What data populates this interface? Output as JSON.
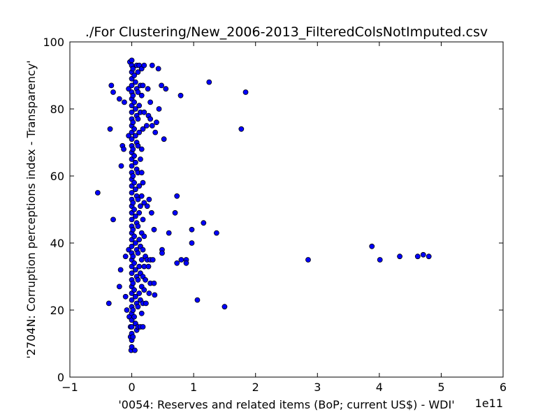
{
  "chart_data": {
    "type": "scatter",
    "title": "./For Clustering/New_2006-2013_FilteredColsNotImputed.csv",
    "xlabel": "'0054: Reserves and related items  (BoP; current US$) - WDI'",
    "ylabel": "'2704N: Corruption perceptions index - Transparency'",
    "x_multiplier_label": "1e11",
    "xlim": [
      -1,
      6
    ],
    "ylim": [
      0,
      100
    ],
    "x_ticks": [
      -1,
      0,
      1,
      2,
      3,
      4,
      5,
      6
    ],
    "x_tick_labels": [
      "−1",
      "0",
      "1",
      "2",
      "3",
      "4",
      "5",
      "6"
    ],
    "y_ticks": [
      0,
      20,
      40,
      60,
      80,
      100
    ],
    "y_tick_labels": [
      "0",
      "20",
      "40",
      "60",
      "80",
      "100"
    ],
    "grid": false,
    "marker_color": "#0000ff",
    "marker_edge_color": "#000000",
    "x_unit_note": "x values in units of 1e11",
    "points": [
      {
        "x": -0.55,
        "y": 55
      },
      {
        "x": -0.37,
        "y": 22
      },
      {
        "x": -0.35,
        "y": 74
      },
      {
        "x": -0.33,
        "y": 87
      },
      {
        "x": -0.3,
        "y": 85
      },
      {
        "x": -0.3,
        "y": 47
      },
      {
        "x": -0.2,
        "y": 27
      },
      {
        "x": -0.2,
        "y": 83
      },
      {
        "x": -0.18,
        "y": 32
      },
      {
        "x": -0.17,
        "y": 63
      },
      {
        "x": -0.15,
        "y": 69
      },
      {
        "x": -0.13,
        "y": 68
      },
      {
        "x": -0.12,
        "y": 82
      },
      {
        "x": -0.1,
        "y": 36
      },
      {
        "x": -0.1,
        "y": 24
      },
      {
        "x": -0.08,
        "y": 20
      },
      {
        "x": -0.05,
        "y": 86
      },
      {
        "x": -0.05,
        "y": 72
      },
      {
        "x": -0.05,
        "y": 38
      },
      {
        "x": -0.04,
        "y": 18
      },
      {
        "x": -0.03,
        "y": 94
      },
      {
        "x": -0.02,
        "y": 15
      },
      {
        "x": -0.02,
        "y": 12
      },
      {
        "x": -0.01,
        "y": 8
      },
      {
        "x": 0.0,
        "y": 94.5
      },
      {
        "x": 0.0,
        "y": 93
      },
      {
        "x": 0.0,
        "y": 91
      },
      {
        "x": 0.0,
        "y": 89
      },
      {
        "x": 0.0,
        "y": 87
      },
      {
        "x": 0.0,
        "y": 85
      },
      {
        "x": 0.0,
        "y": 83
      },
      {
        "x": 0.0,
        "y": 81
      },
      {
        "x": 0.0,
        "y": 79
      },
      {
        "x": 0.0,
        "y": 77
      },
      {
        "x": 0.0,
        "y": 75
      },
      {
        "x": 0.0,
        "y": 73
      },
      {
        "x": 0.0,
        "y": 71
      },
      {
        "x": 0.0,
        "y": 69
      },
      {
        "x": 0.0,
        "y": 67
      },
      {
        "x": 0.0,
        "y": 65
      },
      {
        "x": 0.0,
        "y": 63
      },
      {
        "x": 0.0,
        "y": 61
      },
      {
        "x": 0.0,
        "y": 59
      },
      {
        "x": 0.0,
        "y": 57
      },
      {
        "x": 0.0,
        "y": 55
      },
      {
        "x": 0.0,
        "y": 53
      },
      {
        "x": 0.0,
        "y": 51
      },
      {
        "x": 0.0,
        "y": 49
      },
      {
        "x": 0.0,
        "y": 47
      },
      {
        "x": 0.0,
        "y": 45
      },
      {
        "x": 0.0,
        "y": 43
      },
      {
        "x": 0.0,
        "y": 41
      },
      {
        "x": 0.0,
        "y": 39
      },
      {
        "x": 0.0,
        "y": 37
      },
      {
        "x": 0.0,
        "y": 35
      },
      {
        "x": 0.0,
        "y": 33
      },
      {
        "x": 0.0,
        "y": 31
      },
      {
        "x": 0.0,
        "y": 29
      },
      {
        "x": 0.0,
        "y": 27
      },
      {
        "x": 0.0,
        "y": 25
      },
      {
        "x": 0.0,
        "y": 23
      },
      {
        "x": 0.0,
        "y": 21
      },
      {
        "x": 0.0,
        "y": 19
      },
      {
        "x": 0.0,
        "y": 17
      },
      {
        "x": 0.0,
        "y": 15
      },
      {
        "x": 0.0,
        "y": 13
      },
      {
        "x": 0.0,
        "y": 11
      },
      {
        "x": 0.0,
        "y": 9
      },
      {
        "x": 0.02,
        "y": 92
      },
      {
        "x": 0.02,
        "y": 84
      },
      {
        "x": 0.02,
        "y": 76
      },
      {
        "x": 0.02,
        "y": 68
      },
      {
        "x": 0.02,
        "y": 60
      },
      {
        "x": 0.02,
        "y": 52
      },
      {
        "x": 0.02,
        "y": 44
      },
      {
        "x": 0.02,
        "y": 36
      },
      {
        "x": 0.02,
        "y": 28
      },
      {
        "x": 0.02,
        "y": 20
      },
      {
        "x": 0.02,
        "y": 12
      },
      {
        "x": 0.04,
        "y": 90
      },
      {
        "x": 0.04,
        "y": 82
      },
      {
        "x": 0.04,
        "y": 74
      },
      {
        "x": 0.04,
        "y": 66
      },
      {
        "x": 0.04,
        "y": 58
      },
      {
        "x": 0.04,
        "y": 50
      },
      {
        "x": 0.04,
        "y": 42
      },
      {
        "x": 0.04,
        "y": 34
      },
      {
        "x": 0.04,
        "y": 26
      },
      {
        "x": 0.04,
        "y": 18
      },
      {
        "x": 0.05,
        "y": 8
      },
      {
        "x": 0.06,
        "y": 88
      },
      {
        "x": 0.06,
        "y": 80
      },
      {
        "x": 0.06,
        "y": 72
      },
      {
        "x": 0.06,
        "y": 64
      },
      {
        "x": 0.06,
        "y": 56
      },
      {
        "x": 0.06,
        "y": 48
      },
      {
        "x": 0.06,
        "y": 40
      },
      {
        "x": 0.06,
        "y": 32
      },
      {
        "x": 0.06,
        "y": 24
      },
      {
        "x": 0.06,
        "y": 16
      },
      {
        "x": 0.08,
        "y": 93
      },
      {
        "x": 0.08,
        "y": 86
      },
      {
        "x": 0.08,
        "y": 78
      },
      {
        "x": 0.08,
        "y": 70
      },
      {
        "x": 0.08,
        "y": 62
      },
      {
        "x": 0.08,
        "y": 54
      },
      {
        "x": 0.08,
        "y": 46
      },
      {
        "x": 0.08,
        "y": 38
      },
      {
        "x": 0.08,
        "y": 30
      },
      {
        "x": 0.08,
        "y": 22
      },
      {
        "x": 0.08,
        "y": 14
      },
      {
        "x": 0.1,
        "y": 91
      },
      {
        "x": 0.1,
        "y": 85
      },
      {
        "x": 0.1,
        "y": 77
      },
      {
        "x": 0.1,
        "y": 69
      },
      {
        "x": 0.1,
        "y": 61
      },
      {
        "x": 0.1,
        "y": 53
      },
      {
        "x": 0.1,
        "y": 45
      },
      {
        "x": 0.1,
        "y": 37
      },
      {
        "x": 0.1,
        "y": 29
      },
      {
        "x": 0.1,
        "y": 21
      },
      {
        "x": 0.1,
        "y": 15
      },
      {
        "x": 0.12,
        "y": 93
      },
      {
        "x": 0.12,
        "y": 81
      },
      {
        "x": 0.12,
        "y": 73
      },
      {
        "x": 0.12,
        "y": 57
      },
      {
        "x": 0.12,
        "y": 49
      },
      {
        "x": 0.12,
        "y": 41
      },
      {
        "x": 0.12,
        "y": 33
      },
      {
        "x": 0.12,
        "y": 25
      },
      {
        "x": 0.14,
        "y": 87
      },
      {
        "x": 0.14,
        "y": 79
      },
      {
        "x": 0.14,
        "y": 65
      },
      {
        "x": 0.14,
        "y": 51
      },
      {
        "x": 0.14,
        "y": 39
      },
      {
        "x": 0.14,
        "y": 31
      },
      {
        "x": 0.14,
        "y": 23
      },
      {
        "x": 0.14,
        "y": 15
      },
      {
        "x": 0.16,
        "y": 92
      },
      {
        "x": 0.16,
        "y": 84
      },
      {
        "x": 0.16,
        "y": 68
      },
      {
        "x": 0.16,
        "y": 61
      },
      {
        "x": 0.16,
        "y": 54
      },
      {
        "x": 0.16,
        "y": 43
      },
      {
        "x": 0.16,
        "y": 35
      },
      {
        "x": 0.16,
        "y": 27
      },
      {
        "x": 0.16,
        "y": 19
      },
      {
        "x": 0.18,
        "y": 87
      },
      {
        "x": 0.18,
        "y": 74
      },
      {
        "x": 0.18,
        "y": 58
      },
      {
        "x": 0.18,
        "y": 47
      },
      {
        "x": 0.18,
        "y": 38
      },
      {
        "x": 0.18,
        "y": 30
      },
      {
        "x": 0.18,
        "y": 22
      },
      {
        "x": 0.18,
        "y": 15
      },
      {
        "x": 0.2,
        "y": 93
      },
      {
        "x": 0.2,
        "y": 79
      },
      {
        "x": 0.2,
        "y": 52
      },
      {
        "x": 0.2,
        "y": 42
      },
      {
        "x": 0.2,
        "y": 33
      },
      {
        "x": 0.2,
        "y": 26
      },
      {
        "x": 0.22,
        "y": 36
      },
      {
        "x": 0.22,
        "y": 29
      },
      {
        "x": 0.23,
        "y": 22
      },
      {
        "x": 0.24,
        "y": 75
      },
      {
        "x": 0.25,
        "y": 35
      },
      {
        "x": 0.25,
        "y": 51
      },
      {
        "x": 0.26,
        "y": 86
      },
      {
        "x": 0.27,
        "y": 78
      },
      {
        "x": 0.27,
        "y": 33
      },
      {
        "x": 0.28,
        "y": 53
      },
      {
        "x": 0.28,
        "y": 25
      },
      {
        "x": 0.3,
        "y": 82
      },
      {
        "x": 0.3,
        "y": 77
      },
      {
        "x": 0.3,
        "y": 35
      },
      {
        "x": 0.3,
        "y": 28
      },
      {
        "x": 0.32,
        "y": 49
      },
      {
        "x": 0.33,
        "y": 93
      },
      {
        "x": 0.33,
        "y": 75
      },
      {
        "x": 0.34,
        "y": 35
      },
      {
        "x": 0.36,
        "y": 44
      },
      {
        "x": 0.36,
        "y": 28
      },
      {
        "x": 0.37,
        "y": 24.5
      },
      {
        "x": 0.38,
        "y": 73
      },
      {
        "x": 0.4,
        "y": 76
      },
      {
        "x": 0.43,
        "y": 92
      },
      {
        "x": 0.44,
        "y": 80
      },
      {
        "x": 0.48,
        "y": 87
      },
      {
        "x": 0.49,
        "y": 38
      },
      {
        "x": 0.49,
        "y": 37
      },
      {
        "x": 0.52,
        "y": 71
      },
      {
        "x": 0.55,
        "y": 86
      },
      {
        "x": 0.6,
        "y": 43
      },
      {
        "x": 0.7,
        "y": 49
      },
      {
        "x": 0.73,
        "y": 54
      },
      {
        "x": 0.73,
        "y": 34
      },
      {
        "x": 0.79,
        "y": 84
      },
      {
        "x": 0.8,
        "y": 35
      },
      {
        "x": 0.88,
        "y": 35
      },
      {
        "x": 0.88,
        "y": 34
      },
      {
        "x": 0.97,
        "y": 44
      },
      {
        "x": 0.97,
        "y": 40
      },
      {
        "x": 1.06,
        "y": 23
      },
      {
        "x": 1.16,
        "y": 46
      },
      {
        "x": 1.25,
        "y": 88
      },
      {
        "x": 1.37,
        "y": 43
      },
      {
        "x": 1.5,
        "y": 21
      },
      {
        "x": 1.77,
        "y": 74
      },
      {
        "x": 1.84,
        "y": 85
      },
      {
        "x": 2.85,
        "y": 35
      },
      {
        "x": 3.88,
        "y": 39
      },
      {
        "x": 4.01,
        "y": 35
      },
      {
        "x": 4.33,
        "y": 36
      },
      {
        "x": 4.62,
        "y": 36
      },
      {
        "x": 4.71,
        "y": 36.5
      },
      {
        "x": 4.8,
        "y": 36
      }
    ]
  }
}
